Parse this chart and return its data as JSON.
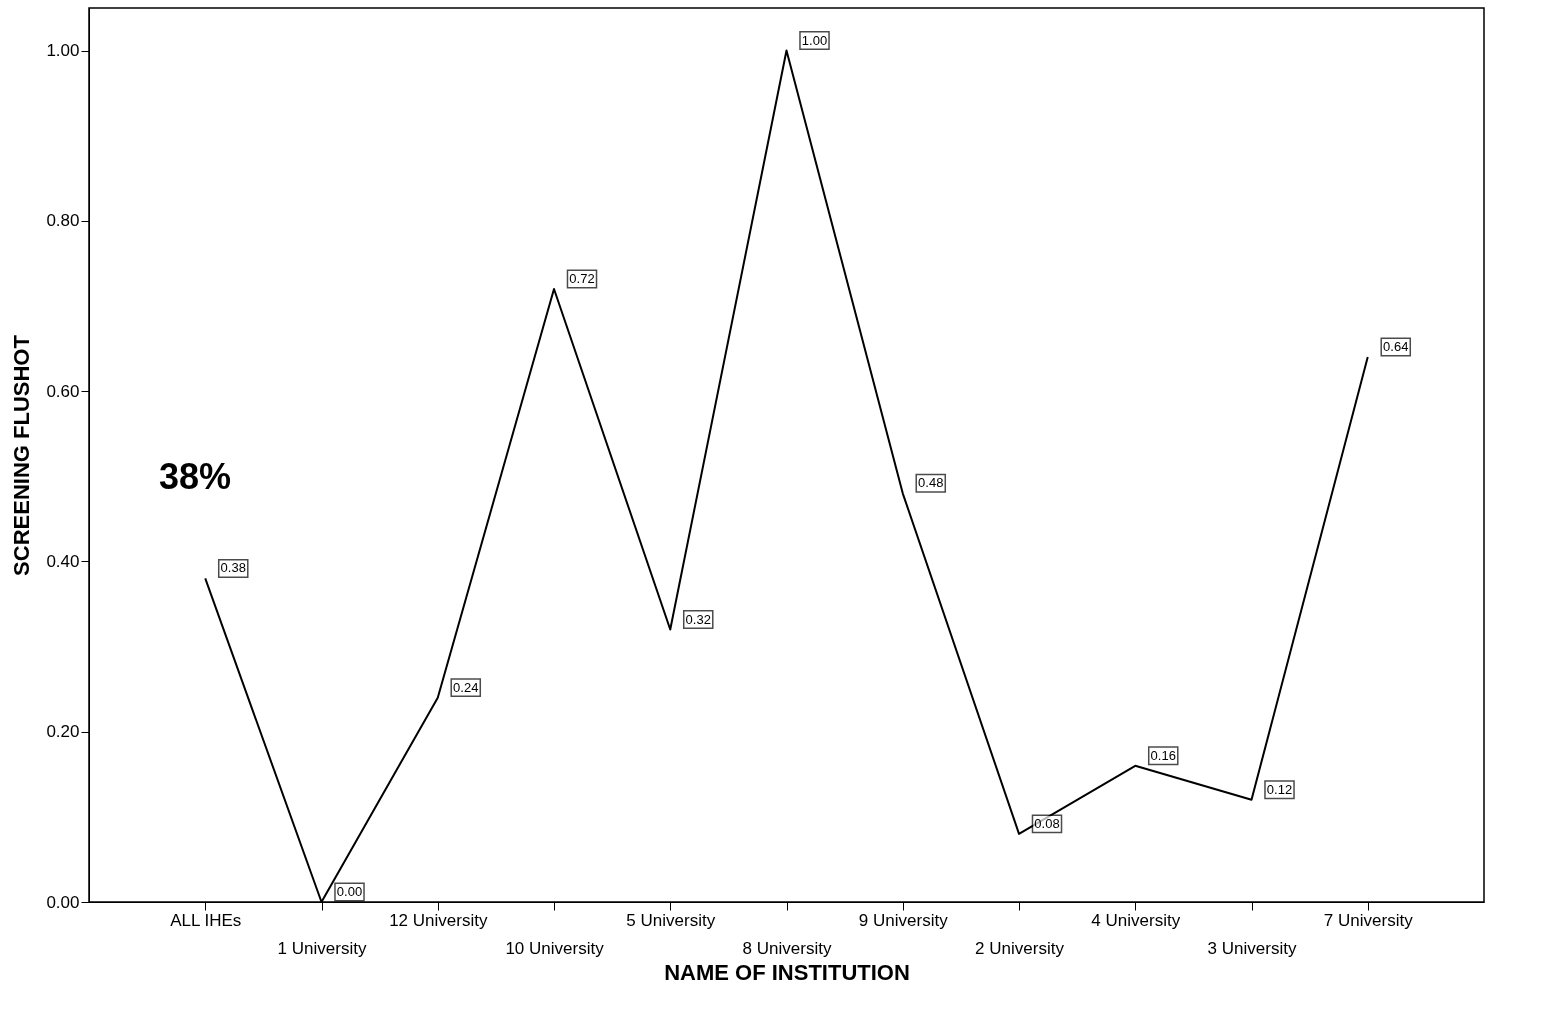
{
  "chart_data": {
    "type": "line",
    "xlabel": "NAME OF INSTITUTION",
    "ylabel": "SCREENING FLUSHOT",
    "categories": [
      "ALL IHEs",
      "1 University",
      "12 University",
      "10 University",
      "5 University",
      "8 University",
      "9 University",
      "2 University",
      "4 University",
      "3 University",
      "7 University"
    ],
    "series": [
      {
        "color": "#000000",
        "values": [
          0.38,
          0.0,
          0.24,
          0.72,
          0.32,
          1.0,
          0.48,
          0.08,
          0.16,
          0.12,
          0.64
        ],
        "value_labels": [
          "0.38",
          "0.00",
          "0.24",
          "0.72",
          "0.32",
          "1.00",
          "0.48",
          "0.08",
          "0.16",
          "0.12",
          "0.64"
        ]
      }
    ],
    "ylim": [
      0,
      1.05
    ],
    "yticks": [
      {
        "value": 0,
        "label": "0.00"
      },
      {
        "value": 0.2,
        "label": "0.20"
      },
      {
        "value": 0.4,
        "label": "0.40"
      },
      {
        "value": 0.6,
        "label": "0.60"
      },
      {
        "value": 0.8,
        "label": "0.80"
      },
      {
        "value": 1,
        "label": "1.00"
      }
    ],
    "grid": false,
    "legend": false,
    "marker": "none",
    "line_style": "solid",
    "annotations": [
      "38%"
    ]
  }
}
